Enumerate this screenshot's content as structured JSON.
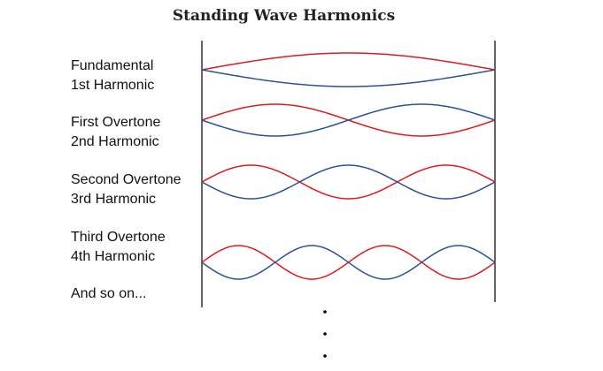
{
  "title": "Standing Wave Harmonics",
  "harmonics": [
    {
      "line1": "Fundamental",
      "line2": "1st Harmonic",
      "n": 1
    },
    {
      "line1": "First Overtone",
      "line2": "2nd Harmonic",
      "n": 2
    },
    {
      "line1": "Second Overtone",
      "line2": "3rd Harmonic",
      "n": 3
    },
    {
      "line1": "Third Overtone",
      "line2": "4th Harmonic",
      "n": 4
    }
  ],
  "footer": "And so on...",
  "colors": {
    "wave_a": "#e0191b",
    "wave_b": "#2a4f9e",
    "boundary": "#000000"
  }
}
